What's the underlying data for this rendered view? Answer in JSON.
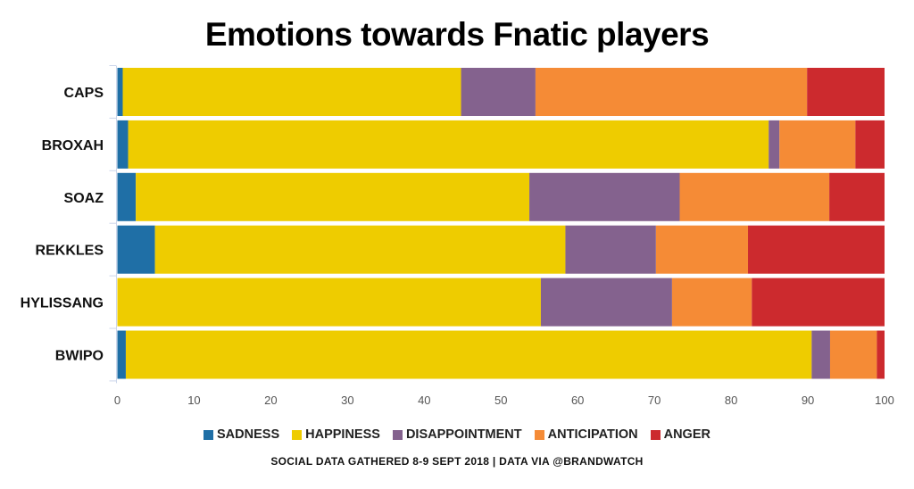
{
  "chart_data": {
    "type": "bar",
    "orientation": "horizontal",
    "stacked": true,
    "title": "Emotions towards Fnatic players",
    "categories": [
      "CAPS",
      "BROXAH",
      "SOAZ",
      "REKKLES",
      "HYLISSANG",
      "BWIPO"
    ],
    "series": [
      {
        "name": "SADNESS",
        "color": "#1f6fa6",
        "values": [
          0.7,
          1.4,
          2.4,
          4.9,
          0,
          1.1
        ]
      },
      {
        "name": "HAPPINESS",
        "color": "#eecc00",
        "values": [
          44.1,
          83.5,
          51.3,
          53.5,
          55.2,
          89.4
        ]
      },
      {
        "name": "DISAPPOINTMENT",
        "color": "#84628e",
        "values": [
          9.7,
          1.4,
          19.6,
          11.8,
          17.1,
          2.4
        ]
      },
      {
        "name": "ANTICIPATION",
        "color": "#f58b36",
        "values": [
          35.4,
          9.9,
          19.5,
          12.0,
          10.4,
          6.1
        ]
      },
      {
        "name": "ANGER",
        "color": "#cc2a2e",
        "values": [
          10.1,
          3.8,
          7.2,
          17.8,
          17.3,
          1.0
        ]
      }
    ],
    "xlim": [
      0,
      100
    ],
    "xticks": [
      "0",
      "10",
      "20",
      "30",
      "40",
      "50",
      "60",
      "70",
      "80",
      "90",
      "100"
    ],
    "xlabel": "",
    "ylabel": "",
    "grid": false,
    "legend_position": "bottom"
  },
  "footer": "SOCIAL DATA GATHERED 8-9 SEPT 2018 | DATA VIA @BRANDWATCH"
}
